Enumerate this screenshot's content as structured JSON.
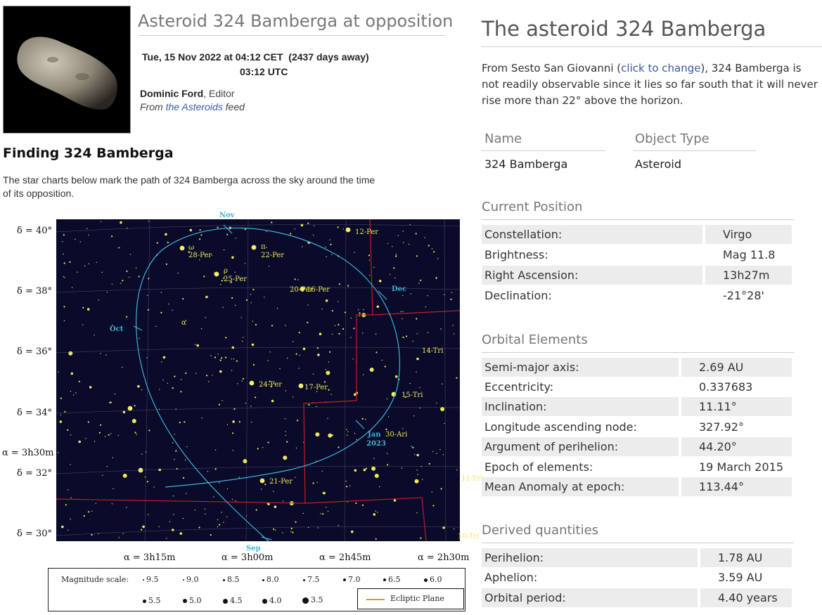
{
  "header": {
    "title": "Asteroid 324 Bamberga at opposition",
    "date_line": "Tue, 15 Nov 2022 at 04:12 CET",
    "days_away": "(2437 days away)",
    "utc_line": "03:12 UTC",
    "editor_name": "Dominic Ford",
    "editor_role": ", Editor",
    "feed_prefix": "From ",
    "feed_link": "the Asteroids",
    "feed_suffix": " feed"
  },
  "finding": {
    "title": "Finding 324 Bamberga",
    "text": "The star charts below mark the path of 324 Bamberga across the sky around the time of its opposition."
  },
  "chart": {
    "dec_labels": [
      "δ = 40°",
      "δ = 38°",
      "δ = 36°",
      "δ = 34°",
      "δ = 32°",
      "δ = 30°"
    ],
    "ra_side_label": "α = 3h30m",
    "ra_labels": [
      "α = 3h15m",
      "α = 3h00m",
      "α = 2h45m",
      "α = 2h30m"
    ],
    "star_labels": [
      "ω",
      "28-Per",
      "π",
      "22-Per",
      "ρ",
      "25-Per",
      "20-Per",
      "16-Per",
      "12-Per",
      "α",
      "14-Tri",
      "24-Per",
      "17-Per",
      "15-Tri",
      "21-Per",
      "30-Ari",
      "11-Tri",
      "10-Tri"
    ],
    "date_labels": [
      "Nov",
      "Dec",
      "Oct",
      "Jan",
      "2023",
      "Sep"
    ],
    "colors": {
      "sky": "#0a0a2a",
      "path": "#3fb4d8",
      "stars": "#eee85a",
      "boundary": "#c02020",
      "ecliptic": "#c9a224"
    }
  },
  "legend": {
    "label": "Magnitude scale:",
    "mags": [
      "9.5",
      "9.0",
      "8.5",
      "8.0",
      "7.5",
      "7.0",
      "6.5",
      "6.0",
      "5.5",
      "5.0",
      "4.5",
      "4.0",
      "3.5"
    ],
    "ecliptic": "Ecliptic Plane"
  },
  "object": {
    "title": "The asteroid 324 Bamberga",
    "obs_prefix": "From Sesto San Giovanni (",
    "obs_link": "click to change",
    "obs_suffix": "), 324 Bamberga is not readily observable since it lies so far south that it will never rise more than 22° above the horizon.",
    "name_head": "Name",
    "type_head": "Object Type",
    "name_value": "324 Bamberga",
    "type_value": "Asteroid"
  },
  "current_position": {
    "title": "Current Position",
    "rows": [
      {
        "label": "Constellation:",
        "value": "Virgo"
      },
      {
        "label": "Brightness:",
        "value": "Mag 11.8"
      },
      {
        "label": "Right Ascension:",
        "value": "13h27m"
      },
      {
        "label": "Declination:",
        "value": "-21°28'"
      }
    ]
  },
  "orbital_elements": {
    "title": "Orbital Elements",
    "rows": [
      {
        "label": "Semi-major axis:",
        "value": "2.69 AU"
      },
      {
        "label": "Eccentricity:",
        "value": "0.337683"
      },
      {
        "label": "Inclination:",
        "value": "11.11°"
      },
      {
        "label": "Longitude ascending node:",
        "value": "327.92°"
      },
      {
        "label": "Argument of perihelion:",
        "value": "44.20°"
      },
      {
        "label": "Epoch of elements:",
        "value": "19 March 2015"
      },
      {
        "label": "Mean Anomaly at epoch:",
        "value": "113.44°"
      }
    ]
  },
  "derived": {
    "title": "Derived quantities",
    "rows": [
      {
        "label": "Perihelion:",
        "value": "1.78 AU"
      },
      {
        "label": "Aphelion:",
        "value": "3.59 AU"
      },
      {
        "label": "Orbital period:",
        "value": "4.40 years"
      }
    ]
  }
}
